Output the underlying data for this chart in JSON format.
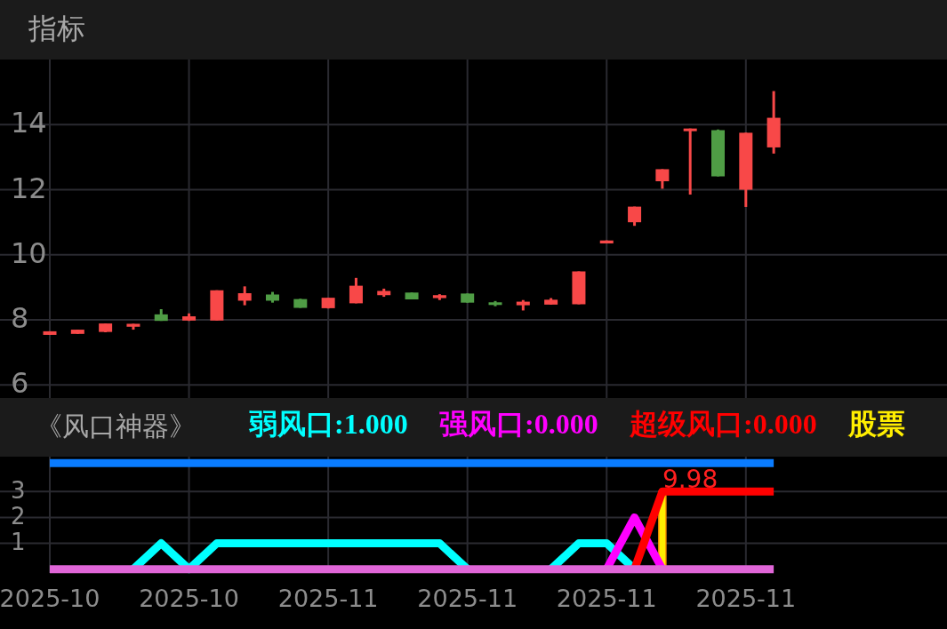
{
  "chart_data": [
    {
      "type": "candlestick",
      "title": "指标",
      "categories": [
        "2025-10",
        null,
        null,
        null,
        null,
        "2025-10",
        null,
        null,
        null,
        null,
        "2025-11",
        null,
        null,
        null,
        null,
        "2025-11",
        null,
        null,
        null,
        null,
        "2025-11",
        null,
        null,
        null,
        null,
        "2025-11",
        null,
        null,
        null,
        null,
        null,
        null,
        null
      ],
      "ohlc": [
        [
          7.54,
          7.65,
          7.54,
          7.65
        ],
        [
          7.57,
          7.7,
          7.57,
          7.7
        ],
        [
          7.63,
          7.89,
          7.62,
          7.89
        ],
        [
          7.79,
          7.88,
          7.7,
          7.88
        ],
        [
          8.17,
          8.33,
          7.97,
          7.97
        ],
        [
          7.98,
          8.2,
          7.97,
          8.11
        ],
        [
          7.98,
          8.91,
          7.98,
          8.91
        ],
        [
          8.59,
          9.03,
          8.45,
          8.82
        ],
        [
          8.78,
          8.86,
          8.53,
          8.59
        ],
        [
          8.64,
          8.65,
          8.37,
          8.37
        ],
        [
          8.36,
          8.68,
          8.35,
          8.68
        ],
        [
          8.51,
          9.29,
          8.51,
          9.05
        ],
        [
          8.76,
          8.96,
          8.71,
          8.89
        ],
        [
          8.84,
          8.84,
          8.63,
          8.63
        ],
        [
          8.67,
          8.79,
          8.61,
          8.76
        ],
        [
          8.81,
          8.81,
          8.53,
          8.53
        ],
        [
          8.54,
          8.58,
          8.42,
          8.46
        ],
        [
          8.45,
          8.61,
          8.29,
          8.56
        ],
        [
          8.47,
          8.67,
          8.47,
          8.62
        ],
        [
          8.48,
          9.49,
          8.48,
          9.49
        ],
        [
          10.35,
          10.44,
          10.35,
          10.44
        ],
        [
          11.0,
          11.48,
          10.89,
          11.48
        ],
        [
          12.26,
          12.63,
          12.03,
          12.63
        ],
        [
          13.8,
          13.88,
          11.85,
          13.88
        ],
        [
          13.83,
          13.85,
          12.41,
          12.41
        ],
        [
          12.0,
          13.75,
          11.47,
          13.75
        ],
        [
          13.3,
          15.03,
          13.11,
          14.21
        ],
        null,
        null,
        null,
        null,
        null,
        null
      ],
      "colors": [
        "#f84848",
        "#f84848",
        "#f84848",
        "#f84848",
        "#4f9d45",
        "#f84848",
        "#f84848",
        "#f84848",
        "#4f9d45",
        "#4f9d45",
        "#f84848",
        "#f84848",
        "#f84848",
        "#4f9d45",
        "#f84848",
        "#4f9d45",
        "#4f9d45",
        "#f84848",
        "#f84848",
        "#f84848",
        "#f84848",
        "#f84848",
        "#f84848",
        "#f84848",
        "#4f9d45",
        "#f84848",
        "#f84848",
        null,
        null,
        null,
        null,
        null,
        null
      ],
      "ylim": [
        5.6,
        16
      ],
      "yticks": [
        6,
        8,
        10,
        12,
        14
      ],
      "grid": true,
      "tick_labels": "y"
    },
    {
      "type": "line",
      "title": "《风口神器》",
      "categories": [
        "2025-10",
        null,
        null,
        null,
        null,
        "2025-10",
        null,
        null,
        null,
        null,
        "2025-11",
        null,
        null,
        null,
        null,
        "2025-11",
        null,
        null,
        null,
        null,
        "2025-11",
        null,
        null,
        null,
        null,
        "2025-11",
        null,
        null,
        null,
        null,
        null,
        null,
        null
      ],
      "series": [
        {
          "color": "#0a7cff",
          "values": [
            4.1,
            4.1,
            4.1,
            4.1,
            4.1,
            4.1,
            4.1,
            4.1,
            4.1,
            4.1,
            4.1,
            4.1,
            4.1,
            4.1,
            4.1,
            4.1,
            4.1,
            4.1,
            4.1,
            4.1,
            4.1,
            4.1,
            4.1,
            4.1,
            4.1,
            4.1,
            4.1,
            null,
            null,
            null,
            null,
            null,
            null
          ]
        },
        {
          "name": "股票",
          "type": "bar",
          "color": "#ffee00",
          "values": [
            null,
            null,
            null,
            null,
            null,
            null,
            null,
            null,
            null,
            null,
            null,
            null,
            null,
            null,
            null,
            null,
            null,
            null,
            null,
            null,
            null,
            null,
            3,
            null,
            null,
            null,
            null,
            null,
            null,
            null,
            null,
            null,
            null
          ]
        },
        {
          "name": "弱风口:1.000",
          "color": "#00ffff",
          "values": [
            null,
            null,
            null,
            0,
            1,
            0,
            1,
            1,
            1,
            1,
            1,
            1,
            1,
            1,
            1,
            0,
            null,
            null,
            0,
            1,
            1,
            0,
            null,
            null,
            null,
            null,
            null,
            null,
            null,
            null,
            null,
            null,
            null
          ]
        },
        {
          "name": "强风口:0.000",
          "color": "#ff00ff",
          "values": [
            null,
            null,
            null,
            null,
            null,
            null,
            null,
            null,
            null,
            null,
            null,
            null,
            null,
            null,
            null,
            null,
            null,
            null,
            null,
            null,
            0,
            2,
            0,
            null,
            null,
            null,
            null,
            null,
            null,
            null,
            null,
            null,
            null
          ]
        },
        {
          "name": "超级风口:0.000",
          "color": "#ff0000",
          "values": [
            null,
            null,
            null,
            null,
            null,
            null,
            null,
            null,
            null,
            null,
            null,
            null,
            null,
            null,
            null,
            null,
            null,
            null,
            null,
            null,
            null,
            0,
            3,
            3,
            3,
            3,
            3,
            null,
            null,
            null,
            null,
            null,
            null
          ]
        },
        {
          "color": "#e066d8",
          "values": [
            0,
            0,
            0,
            0,
            0,
            0,
            0,
            0,
            0,
            0,
            0,
            0,
            0,
            0,
            0,
            0,
            0,
            0,
            0,
            0,
            0,
            0,
            0,
            0,
            0,
            0,
            0,
            null,
            null,
            null,
            null,
            null,
            null
          ]
        }
      ],
      "annotations": [
        {
          "text": "9.98",
          "y": 3
        }
      ],
      "ylim": [
        -0.15,
        4.35
      ],
      "yticks": [
        1,
        2,
        3
      ],
      "grid": true,
      "legend": "top"
    }
  ]
}
